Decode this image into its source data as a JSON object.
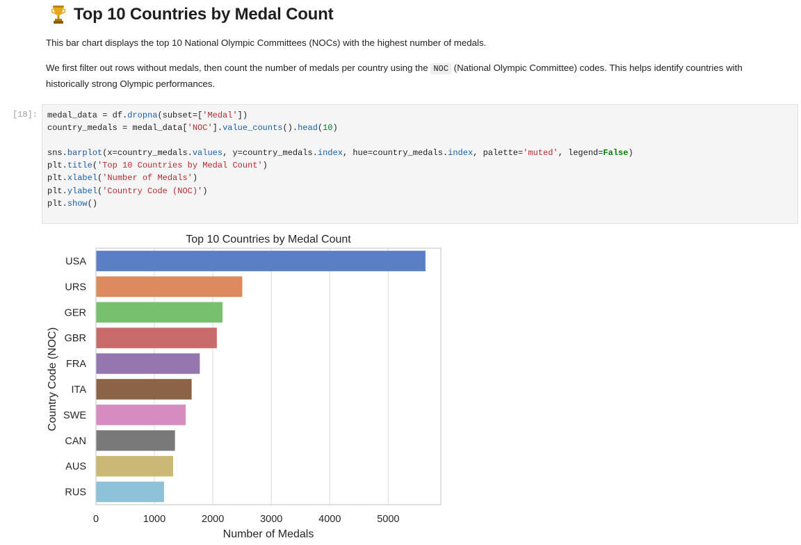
{
  "heading": {
    "title": "Top 10 Countries by Medal Count",
    "icon": "trophy-icon"
  },
  "markdown": {
    "p1": "This bar chart displays the top 10 National Olympic Committees (NOCs) with the highest number of medals.",
    "p2_before": "We first filter out rows without medals, then count the number of medals per country using the",
    "p2_code": "NOC",
    "p2_after": "(National Olympic Committee) codes. This helps identify countries with historically strong Olympic performances."
  },
  "cell": {
    "prompt": "[18]:",
    "code_lines": [
      "medal_data = df.dropna(subset=['Medal'])",
      "country_medals = medal_data['NOC'].value_counts().head(10)",
      "",
      "sns.barplot(x=country_medals.values, y=country_medals.index, hue=country_medals.index, palette='muted', legend=False)",
      "plt.title('Top 10 Countries by Medal Count')",
      "plt.xlabel('Number of Medals')",
      "plt.ylabel('Country Code (NOC)')",
      "plt.show()"
    ]
  },
  "chart_data": {
    "type": "bar",
    "orientation": "horizontal",
    "title": "Top 10 Countries by Medal Count",
    "xlabel": "Number of Medals",
    "ylabel": "Country Code (NOC)",
    "categories": [
      "USA",
      "URS",
      "GER",
      "GBR",
      "FRA",
      "ITA",
      "SWE",
      "CAN",
      "AUS",
      "RUS"
    ],
    "values": [
      5637,
      2503,
      2165,
      2068,
      1777,
      1637,
      1536,
      1352,
      1320,
      1165
    ],
    "colors": [
      "#5b7fc4",
      "#dc8a5e",
      "#77c06e",
      "#c96b6b",
      "#9576ad",
      "#8b6448",
      "#d68bc1",
      "#797979",
      "#ccb876",
      "#8ec2d8"
    ],
    "xlim": [
      0,
      5900
    ],
    "xticks": [
      "0",
      "1000",
      "2000",
      "3000",
      "4000",
      "5000"
    ],
    "grid": "vertical"
  }
}
